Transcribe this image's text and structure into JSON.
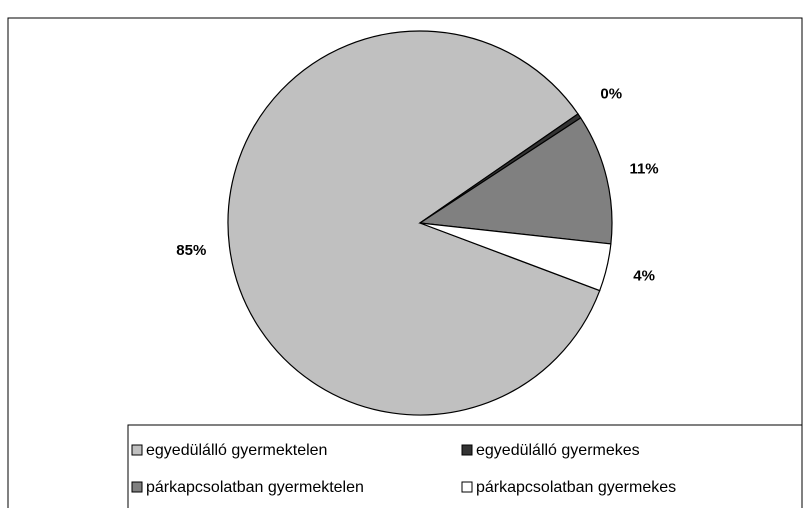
{
  "chart_data": {
    "type": "pie",
    "categories": [
      "egyedülálló gyermektelen",
      "egyedülálló gyermekes",
      "párkapcsolatban gyermektelen",
      "párkapcsolatban gyermekes"
    ],
    "values": [
      85,
      0.4,
      11,
      4
    ],
    "value_labels": [
      "85%",
      "0%",
      "11%",
      "4%"
    ],
    "colors": [
      "#c0c0c0",
      "#333333",
      "#808080",
      "#ffffff"
    ],
    "legend": "bottom"
  }
}
